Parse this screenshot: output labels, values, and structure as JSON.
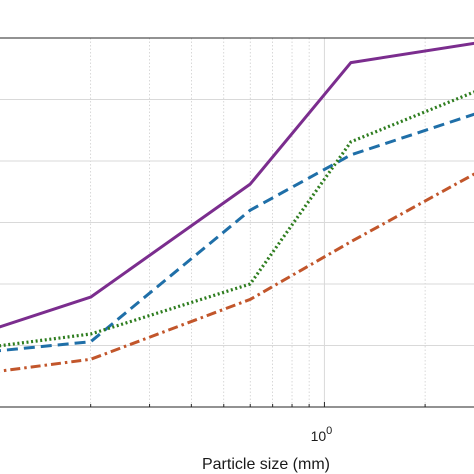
{
  "chart_data": {
    "type": "line",
    "xlabel": "Particle size (mm)",
    "ylabel": "",
    "title": "",
    "x_scale": "log",
    "xlim": [
      0.1,
      3.0
    ],
    "ylim": [
      0,
      48
    ],
    "grid": true,
    "x_tick_labels": [
      {
        "base": "10",
        "exp": "0",
        "value": 1
      }
    ],
    "series": [
      {
        "color": "#7b2d8e",
        "style": "solid",
        "x": [
          0.1,
          0.2,
          0.6,
          1.2,
          3.0
        ],
        "y": [
          10,
          14.3,
          29,
          44.8,
          47.5
        ]
      },
      {
        "color": "#1f6fa8",
        "style": "dashed",
        "x": [
          0.1,
          0.2,
          0.6,
          1.2,
          3.0
        ],
        "y": [
          7.2,
          8.5,
          25.6,
          32.8,
          38.5
        ]
      },
      {
        "color": "#2e7d1f",
        "style": "dotted",
        "x": [
          0.1,
          0.2,
          0.6,
          1.2,
          3.0
        ],
        "y": [
          7.8,
          9.5,
          16,
          34.5,
          41.5
        ]
      },
      {
        "color": "#c2562b",
        "style": "dashdot",
        "x": [
          0.1,
          0.2,
          0.6,
          1.2,
          3.0
        ],
        "y": [
          4.5,
          6.2,
          14,
          21.5,
          31
        ]
      }
    ]
  }
}
